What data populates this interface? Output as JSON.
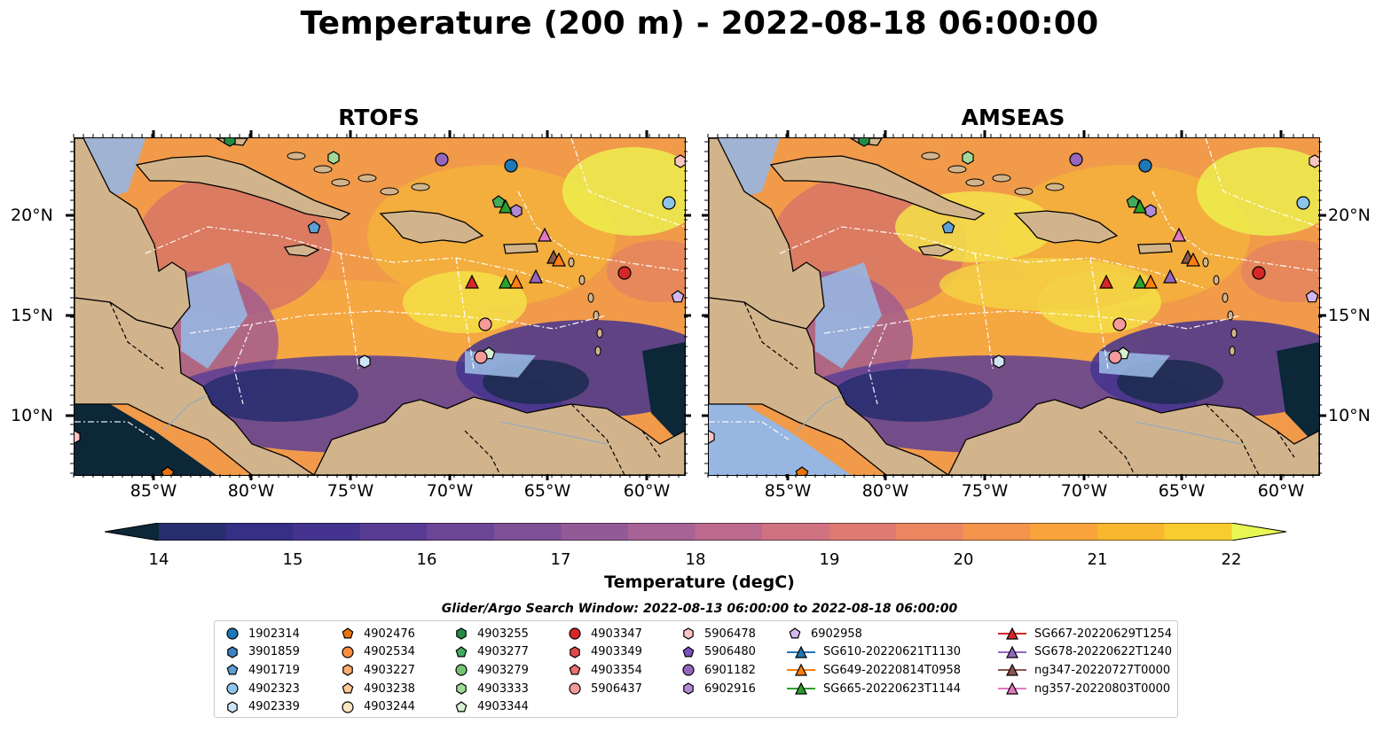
{
  "title": "Temperature (200 m) - 2022-08-18 06:00:00",
  "panels": [
    {
      "title": "RTOFS"
    },
    {
      "title": "AMSEAS"
    }
  ],
  "x_ticks": [
    "85°W",
    "80°W",
    "75°W",
    "70°W",
    "65°W",
    "60°W"
  ],
  "y_ticks": [
    "20°N",
    "15°N",
    "10°N"
  ],
  "colorbar": {
    "label": "Temperature (degC)",
    "ticks": [
      "14",
      "15",
      "16",
      "17",
      "18",
      "19",
      "20",
      "21",
      "22"
    ],
    "colors": [
      "#0b2738",
      "#1a2a4e",
      "#272d6e",
      "#352f85",
      "#45348f",
      "#583c93",
      "#6b4596",
      "#7f4f98",
      "#935a98",
      "#a76395",
      "#bb6a8e",
      "#cf7282",
      "#df7a72",
      "#ec8660",
      "#f4934c",
      "#f8a33b",
      "#f9b62f",
      "#f8cb2e",
      "#f0e23a",
      "#e8f754"
    ]
  },
  "search_window": "Glider/Argo Search Window: 2022-08-13 06:00:00 to 2022-08-18 06:00:00",
  "legend": {
    "columns": [
      [
        {
          "label": "1902314",
          "marker": "circle",
          "color": "#1f77b4"
        },
        {
          "label": "3901859",
          "marker": "hexagon",
          "color": "#3b82c4"
        },
        {
          "label": "4901719",
          "marker": "pentagon",
          "color": "#5c9ed6"
        },
        {
          "label": "4902323",
          "marker": "circle",
          "color": "#8ec4e8"
        },
        {
          "label": "4902339",
          "marker": "hexagon",
          "color": "#cde4f5"
        }
      ],
      [
        {
          "label": "4902476",
          "marker": "pentagon",
          "color": "#e8730f"
        },
        {
          "label": "4902534",
          "marker": "circle",
          "color": "#fd8d3c"
        },
        {
          "label": "4903227",
          "marker": "hexagon",
          "color": "#fdae6b"
        },
        {
          "label": "4903238",
          "marker": "pentagon",
          "color": "#fdc894"
        },
        {
          "label": "4903244",
          "marker": "circle",
          "color": "#fee3c2"
        }
      ],
      [
        {
          "label": "4903255",
          "marker": "hexagon",
          "color": "#238b45"
        },
        {
          "label": "4903277",
          "marker": "pentagon",
          "color": "#41ab5d"
        },
        {
          "label": "4903279",
          "marker": "circle",
          "color": "#74c476"
        },
        {
          "label": "4903333",
          "marker": "hexagon",
          "color": "#a1d99b"
        },
        {
          "label": "4903344",
          "marker": "pentagon",
          "color": "#d7f0cf"
        }
      ],
      [
        {
          "label": "4903347",
          "marker": "circle",
          "color": "#d62728"
        },
        {
          "label": "4903349",
          "marker": "hexagon",
          "color": "#e24a4a"
        },
        {
          "label": "4903354",
          "marker": "pentagon",
          "color": "#ee7070"
        },
        {
          "label": "5906437",
          "marker": "circle",
          "color": "#f59a9a"
        }
      ],
      [
        {
          "label": "5906478",
          "marker": "hexagon",
          "color": "#fbc4c4"
        },
        {
          "label": "5906480",
          "marker": "pentagon",
          "color": "#7e4fbf"
        },
        {
          "label": "6901182",
          "marker": "circle",
          "color": "#9467bd"
        },
        {
          "label": "6902916",
          "marker": "hexagon",
          "color": "#b08ad6"
        }
      ],
      [
        {
          "label": "6902958",
          "marker": "pentagon",
          "color": "#d2b8ee"
        },
        {
          "label": "SG610-20220621T1130",
          "marker": "triangle-line",
          "color": "#1f77b4"
        },
        {
          "label": "SG649-20220814T0958",
          "marker": "triangle-line",
          "color": "#ff7f0e"
        },
        {
          "label": "SG665-20220623T1144",
          "marker": "triangle-line",
          "color": "#2ca02c"
        }
      ],
      [
        {
          "label": "SG667-20220629T1254",
          "marker": "triangle-line",
          "color": "#d62728"
        },
        {
          "label": "SG678-20220622T1240",
          "marker": "triangle-line",
          "color": "#9467bd"
        },
        {
          "label": "ng347-20220727T0000",
          "marker": "triangle-line",
          "color": "#8c564b"
        },
        {
          "label": "ng357-20220803T0000",
          "marker": "triangle-line",
          "color": "#e377c2"
        }
      ]
    ]
  }
}
